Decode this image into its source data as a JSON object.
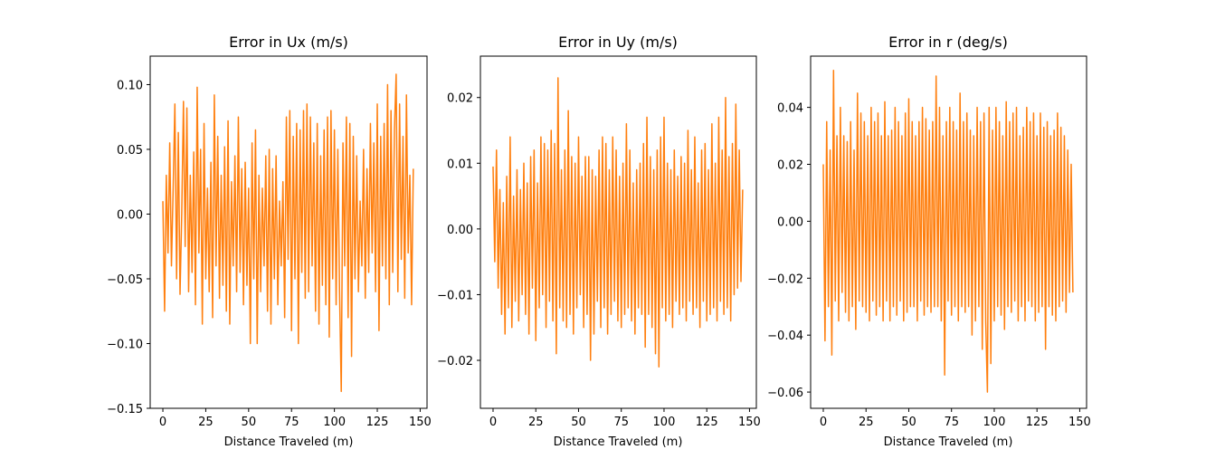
{
  "chart_data": [
    {
      "type": "line",
      "title": "Error in Ux (m/s)",
      "xlabel": "Distance Traveled (m)",
      "ylabel": "",
      "xlim": [
        -7.4,
        154
      ],
      "ylim": [
        -0.15,
        0.122
      ],
      "xticks": [
        0,
        25,
        50,
        75,
        100,
        125,
        150
      ],
      "yticks": [
        -0.15,
        -0.1,
        -0.05,
        0.0,
        0.05,
        0.1
      ],
      "ytick_labels": [
        "−0.15",
        "−0.10",
        "−0.05",
        "0.00",
        "0.05",
        "0.10"
      ],
      "grid": false,
      "color": "#ff7f0e",
      "series": [
        {
          "x": [
            0,
            1,
            2,
            3,
            4,
            5,
            6,
            7,
            8,
            9,
            10,
            11,
            12,
            13,
            14,
            15,
            16,
            17,
            18,
            19,
            20,
            21,
            22,
            23,
            24,
            25,
            26,
            27,
            28,
            29,
            30,
            31,
            32,
            33,
            34,
            35,
            36,
            37,
            38,
            39,
            40,
            41,
            42,
            43,
            44,
            45,
            46,
            47,
            48,
            49,
            50,
            51,
            52,
            53,
            54,
            55,
            56,
            57,
            58,
            59,
            60,
            61,
            62,
            63,
            64,
            65,
            66,
            67,
            68,
            69,
            70,
            71,
            72,
            73,
            74,
            75,
            76,
            77,
            78,
            79,
            80,
            81,
            82,
            83,
            84,
            85,
            86,
            87,
            88,
            89,
            90,
            91,
            92,
            93,
            94,
            95,
            96,
            97,
            98,
            99,
            100,
            101,
            102,
            103,
            104,
            105,
            106,
            107,
            108,
            109,
            110,
            111,
            112,
            113,
            114,
            115,
            116,
            117,
            118,
            119,
            120,
            121,
            122,
            123,
            124,
            125,
            126,
            127,
            128,
            129,
            130,
            131,
            132,
            133,
            134,
            135,
            136,
            137,
            138,
            139,
            140,
            141,
            142,
            143,
            144,
            145,
            146
          ],
          "values": [
            0.01,
            -0.075,
            0.03,
            -0.03,
            0.055,
            -0.04,
            0.02,
            0.085,
            -0.05,
            0.063,
            -0.062,
            0.0,
            0.087,
            -0.025,
            0.082,
            -0.06,
            0.03,
            -0.045,
            0.048,
            -0.07,
            0.098,
            -0.03,
            0.05,
            -0.085,
            0.07,
            -0.05,
            0.02,
            -0.06,
            0.04,
            -0.08,
            0.092,
            -0.04,
            0.06,
            -0.065,
            0.03,
            -0.055,
            0.052,
            -0.075,
            0.072,
            -0.085,
            0.025,
            -0.04,
            0.045,
            -0.06,
            0.075,
            -0.045,
            0.035,
            -0.07,
            0.04,
            -0.055,
            0.02,
            -0.1,
            0.055,
            -0.05,
            0.065,
            -0.1,
            0.03,
            -0.06,
            0.02,
            -0.04,
            0.045,
            -0.075,
            0.05,
            -0.085,
            0.035,
            -0.05,
            0.045,
            -0.07,
            0.01,
            -0.04,
            0.025,
            -0.08,
            0.075,
            -0.035,
            0.08,
            -0.09,
            0.06,
            -0.05,
            0.07,
            -0.1,
            0.065,
            -0.045,
            0.08,
            -0.065,
            0.085,
            -0.06,
            0.075,
            -0.04,
            0.055,
            -0.075,
            0.07,
            -0.085,
            0.045,
            -0.055,
            0.065,
            -0.07,
            0.075,
            -0.095,
            0.08,
            -0.05,
            0.065,
            -0.07,
            0.05,
            -0.06,
            -0.137,
            0.055,
            -0.04,
            0.075,
            -0.08,
            0.07,
            -0.11,
            0.06,
            -0.05,
            0.045,
            -0.06,
            0.01,
            -0.04,
            0.05,
            -0.065,
            0.035,
            -0.045,
            0.07,
            -0.03,
            0.055,
            -0.06,
            0.085,
            -0.09,
            0.06,
            -0.04,
            0.07,
            -0.05,
            0.1,
            -0.07,
            0.08,
            -0.045,
            0.065,
            0.108,
            -0.06,
            0.085,
            -0.035,
            0.06,
            -0.065,
            0.092,
            -0.03,
            0.03,
            -0.07,
            0.035
          ]
        }
      ]
    },
    {
      "type": "line",
      "title": "Error in Uy (m/s)",
      "xlabel": "Distance Traveled (m)",
      "ylabel": "",
      "xlim": [
        -7.4,
        154
      ],
      "ylim": [
        -0.0273,
        0.0263
      ],
      "xticks": [
        0,
        25,
        50,
        75,
        100,
        125,
        150
      ],
      "yticks": [
        -0.02,
        -0.01,
        0.0,
        0.01,
        0.02
      ],
      "ytick_labels": [
        "−0.02",
        "−0.01",
        "0.00",
        "0.01",
        "0.02"
      ],
      "grid": false,
      "color": "#ff7f0e",
      "series": [
        {
          "x": [
            0,
            1,
            2,
            3,
            4,
            5,
            6,
            7,
            8,
            9,
            10,
            11,
            12,
            13,
            14,
            15,
            16,
            17,
            18,
            19,
            20,
            21,
            22,
            23,
            24,
            25,
            26,
            27,
            28,
            29,
            30,
            31,
            32,
            33,
            34,
            35,
            36,
            37,
            38,
            39,
            40,
            41,
            42,
            43,
            44,
            45,
            46,
            47,
            48,
            49,
            50,
            51,
            52,
            53,
            54,
            55,
            56,
            57,
            58,
            59,
            60,
            61,
            62,
            63,
            64,
            65,
            66,
            67,
            68,
            69,
            70,
            71,
            72,
            73,
            74,
            75,
            76,
            77,
            78,
            79,
            80,
            81,
            82,
            83,
            84,
            85,
            86,
            87,
            88,
            89,
            90,
            91,
            92,
            93,
            94,
            95,
            96,
            97,
            98,
            99,
            100,
            101,
            102,
            103,
            104,
            105,
            106,
            107,
            108,
            109,
            110,
            111,
            112,
            113,
            114,
            115,
            116,
            117,
            118,
            119,
            120,
            121,
            122,
            123,
            124,
            125,
            126,
            127,
            128,
            129,
            130,
            131,
            132,
            133,
            134,
            135,
            136,
            137,
            138,
            139,
            140,
            141,
            142,
            143,
            144,
            145,
            146
          ],
          "values": [
            0.0095,
            -0.005,
            0.012,
            -0.009,
            0.006,
            -0.013,
            0.004,
            -0.016,
            0.008,
            -0.012,
            0.014,
            -0.015,
            0.005,
            -0.011,
            0.009,
            -0.014,
            0.006,
            -0.01,
            0.01,
            -0.013,
            0.007,
            -0.016,
            0.011,
            -0.009,
            0.012,
            -0.017,
            0.007,
            -0.012,
            0.014,
            -0.01,
            0.013,
            -0.015,
            0.012,
            -0.011,
            0.015,
            -0.014,
            0.013,
            -0.019,
            0.023,
            -0.012,
            0.009,
            -0.014,
            0.012,
            -0.015,
            0.018,
            -0.013,
            0.011,
            -0.016,
            0.01,
            -0.012,
            0.014,
            -0.01,
            0.008,
            -0.015,
            0.011,
            -0.013,
            0.011,
            -0.02,
            0.009,
            -0.016,
            0.008,
            -0.011,
            0.012,
            -0.015,
            0.014,
            -0.012,
            0.013,
            -0.016,
            0.009,
            -0.013,
            0.014,
            -0.011,
            0.012,
            -0.014,
            0.008,
            -0.015,
            0.01,
            -0.013,
            0.016,
            -0.012,
            0.012,
            -0.014,
            0.007,
            -0.016,
            0.009,
            -0.012,
            0.01,
            -0.013,
            0.013,
            -0.018,
            0.017,
            -0.013,
            0.011,
            -0.015,
            0.009,
            -0.019,
            0.012,
            -0.021,
            0.014,
            -0.012,
            0.017,
            -0.014,
            0.01,
            -0.013,
            0.009,
            -0.015,
            0.012,
            -0.011,
            0.008,
            -0.013,
            0.011,
            -0.012,
            0.01,
            -0.014,
            0.015,
            -0.011,
            0.009,
            -0.013,
            0.014,
            -0.012,
            0.007,
            -0.015,
            0.012,
            -0.011,
            0.013,
            -0.014,
            0.009,
            -0.013,
            0.016,
            -0.012,
            0.01,
            -0.014,
            0.017,
            -0.011,
            0.012,
            -0.013,
            0.02,
            -0.012,
            0.011,
            -0.014,
            0.013,
            -0.01,
            0.019,
            -0.009,
            0.012,
            -0.008,
            0.006
          ]
        }
      ]
    },
    {
      "type": "line",
      "title": "Error in r (deg/s)",
      "xlabel": "Distance Traveled (m)",
      "ylabel": "",
      "xlim": [
        -7.4,
        154
      ],
      "ylim": [
        -0.0657,
        0.058
      ],
      "xticks": [
        0,
        25,
        50,
        75,
        100,
        125,
        150
      ],
      "yticks": [
        -0.06,
        -0.04,
        -0.02,
        0.0,
        0.02,
        0.04
      ],
      "ytick_labels": [
        "−0.06",
        "−0.04",
        "−0.02",
        "0.00",
        "0.02",
        "0.04"
      ],
      "grid": false,
      "color": "#ff7f0e",
      "series": [
        {
          "x": [
            0,
            1,
            2,
            3,
            4,
            5,
            6,
            7,
            8,
            9,
            10,
            11,
            12,
            13,
            14,
            15,
            16,
            17,
            18,
            19,
            20,
            21,
            22,
            23,
            24,
            25,
            26,
            27,
            28,
            29,
            30,
            31,
            32,
            33,
            34,
            35,
            36,
            37,
            38,
            39,
            40,
            41,
            42,
            43,
            44,
            45,
            46,
            47,
            48,
            49,
            50,
            51,
            52,
            53,
            54,
            55,
            56,
            57,
            58,
            59,
            60,
            61,
            62,
            63,
            64,
            65,
            66,
            67,
            68,
            69,
            70,
            71,
            72,
            73,
            74,
            75,
            76,
            77,
            78,
            79,
            80,
            81,
            82,
            83,
            84,
            85,
            86,
            87,
            88,
            89,
            90,
            91,
            92,
            93,
            94,
            95,
            96,
            97,
            98,
            99,
            100,
            101,
            102,
            103,
            104,
            105,
            106,
            107,
            108,
            109,
            110,
            111,
            112,
            113,
            114,
            115,
            116,
            117,
            118,
            119,
            120,
            121,
            122,
            123,
            124,
            125,
            126,
            127,
            128,
            129,
            130,
            131,
            132,
            133,
            134,
            135,
            136,
            137,
            138,
            139,
            140,
            141,
            142,
            143,
            144,
            145,
            146
          ],
          "values": [
            0.02,
            -0.042,
            0.035,
            -0.03,
            0.025,
            -0.047,
            0.053,
            -0.028,
            0.03,
            -0.035,
            0.04,
            -0.025,
            0.03,
            -0.032,
            0.028,
            -0.035,
            0.035,
            -0.03,
            0.025,
            -0.038,
            0.045,
            -0.028,
            0.038,
            -0.03,
            0.035,
            -0.032,
            0.03,
            -0.035,
            0.04,
            -0.028,
            0.035,
            -0.033,
            0.038,
            -0.03,
            0.03,
            -0.035,
            0.042,
            -0.028,
            0.03,
            -0.035,
            0.032,
            -0.03,
            0.04,
            -0.033,
            0.035,
            -0.028,
            0.03,
            -0.035,
            0.038,
            -0.032,
            0.043,
            -0.03,
            0.035,
            -0.03,
            0.03,
            -0.035,
            0.035,
            -0.028,
            0.04,
            -0.033,
            0.036,
            -0.03,
            0.032,
            -0.032,
            0.035,
            -0.03,
            0.051,
            -0.03,
            0.04,
            -0.035,
            0.03,
            -0.054,
            0.035,
            -0.028,
            0.04,
            -0.033,
            0.035,
            -0.03,
            0.032,
            -0.035,
            0.045,
            -0.03,
            0.035,
            -0.032,
            0.038,
            -0.03,
            0.032,
            -0.04,
            0.03,
            -0.035,
            0.04,
            -0.03,
            0.035,
            -0.045,
            0.038,
            -0.035,
            -0.06,
            0.04,
            -0.05,
            0.032,
            -0.035,
            0.04,
            -0.03,
            0.035,
            -0.033,
            0.03,
            -0.038,
            0.042,
            -0.03,
            0.035,
            -0.032,
            0.038,
            -0.028,
            0.04,
            -0.035,
            0.03,
            -0.03,
            0.033,
            -0.035,
            0.04,
            -0.028,
            0.035,
            -0.03,
            0.038,
            -0.035,
            0.03,
            -0.032,
            0.038,
            -0.03,
            0.033,
            -0.045,
            0.035,
            -0.03,
            0.03,
            -0.033,
            0.032,
            -0.035,
            0.038,
            -0.03,
            0.033,
            -0.028,
            0.03,
            -0.032,
            0.025,
            -0.025,
            0.02,
            -0.025
          ]
        }
      ]
    }
  ]
}
